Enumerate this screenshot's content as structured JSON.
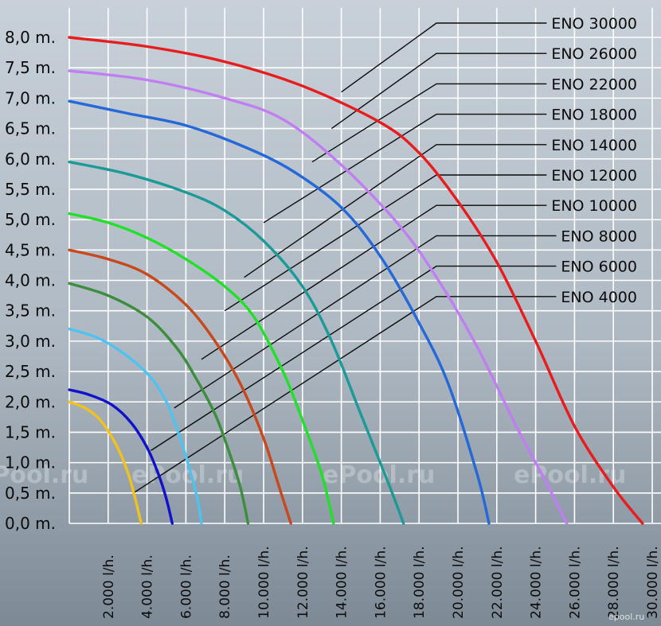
{
  "chart_data": {
    "type": "line",
    "title": "",
    "xlabel": "",
    "ylabel": "",
    "grid": true,
    "xlim": [
      0,
      30000
    ],
    "ylim": [
      0,
      8.5
    ],
    "y_ticks": [
      {
        "value": 0.0,
        "label": "0,0 m."
      },
      {
        "value": 0.5,
        "label": "0,5 m."
      },
      {
        "value": 1.0,
        "label": "1,0 m."
      },
      {
        "value": 1.5,
        "label": "1,5 m."
      },
      {
        "value": 2.0,
        "label": "2,0 m."
      },
      {
        "value": 2.5,
        "label": "2,5 m."
      },
      {
        "value": 3.0,
        "label": "3,0 m."
      },
      {
        "value": 3.5,
        "label": "3,5 m."
      },
      {
        "value": 4.0,
        "label": "4,0 m."
      },
      {
        "value": 4.5,
        "label": "4,5 m."
      },
      {
        "value": 5.0,
        "label": "5,0 m."
      },
      {
        "value": 5.5,
        "label": "5,5 m."
      },
      {
        "value": 6.0,
        "label": "6,0 m."
      },
      {
        "value": 6.5,
        "label": "6,5 m."
      },
      {
        "value": 7.0,
        "label": "7,0 m."
      },
      {
        "value": 7.5,
        "label": "7,5 m."
      },
      {
        "value": 8.0,
        "label": "8,0 m."
      }
    ],
    "x_ticks": [
      {
        "value": 2000,
        "label": "2.000 l/h."
      },
      {
        "value": 4000,
        "label": "4.000 l/h."
      },
      {
        "value": 6000,
        "label": "6.000 l/h."
      },
      {
        "value": 8000,
        "label": "8.000 l/h."
      },
      {
        "value": 10000,
        "label": "10.000 l/h."
      },
      {
        "value": 12000,
        "label": "12.000 l/h."
      },
      {
        "value": 14000,
        "label": "14.000 l/h."
      },
      {
        "value": 16000,
        "label": "16.000 l/h."
      },
      {
        "value": 18000,
        "label": "18.000 l/h."
      },
      {
        "value": 20000,
        "label": "20.000 l/h."
      },
      {
        "value": 22000,
        "label": "22.000 l/h."
      },
      {
        "value": 24000,
        "label": "24.000 l/h."
      },
      {
        "value": 26000,
        "label": "26.000 l/h."
      },
      {
        "value": 28000,
        "label": "28.000 l/h."
      },
      {
        "value": 30000,
        "label": "30.000 l/h."
      }
    ],
    "series": [
      {
        "name": "ENO 30000",
        "color": "#e81c1c",
        "x": [
          0,
          4000,
          8000,
          12000,
          16000,
          18000,
          20000,
          22000,
          24000,
          26000,
          28000,
          29500
        ],
        "y": [
          8.0,
          7.85,
          7.6,
          7.2,
          6.6,
          6.1,
          5.3,
          4.3,
          3.0,
          1.6,
          0.6,
          0.0
        ],
        "leader": [
          14000,
          7.1
        ]
      },
      {
        "name": "ENO 26000",
        "color": "#c07ef2",
        "x": [
          0,
          4000,
          8000,
          11000,
          14000,
          17000,
          19000,
          21000,
          23000,
          24500,
          25600
        ],
        "y": [
          7.45,
          7.3,
          7.0,
          6.65,
          5.9,
          4.9,
          4.0,
          2.9,
          1.6,
          0.7,
          0.0
        ],
        "leader": [
          13500,
          6.5
        ]
      },
      {
        "name": "ENO 22000",
        "color": "#2569d8",
        "x": [
          0,
          3000,
          6000,
          9000,
          11500,
          14000,
          16000,
          18000,
          19500,
          21000,
          21600
        ],
        "y": [
          6.95,
          6.75,
          6.55,
          6.2,
          5.8,
          5.2,
          4.4,
          3.3,
          2.3,
          0.8,
          0.0
        ],
        "leader": [
          12500,
          5.95
        ]
      },
      {
        "name": "ENO 18000",
        "color": "#1c9a98",
        "x": [
          0,
          3000,
          6000,
          8000,
          10000,
          12000,
          13500,
          15000,
          16500,
          17200
        ],
        "y": [
          5.95,
          5.75,
          5.45,
          5.15,
          4.65,
          3.9,
          3.0,
          1.8,
          0.6,
          0.0
        ],
        "leader": [
          10000,
          4.95
        ]
      },
      {
        "name": "ENO 14000",
        "color": "#22e02a",
        "x": [
          0,
          2000,
          4000,
          6000,
          8000,
          9500,
          11000,
          12000,
          13000,
          13600
        ],
        "y": [
          5.1,
          4.95,
          4.7,
          4.35,
          3.9,
          3.4,
          2.5,
          1.7,
          0.8,
          0.0
        ],
        "leader": [
          9000,
          4.05
        ]
      },
      {
        "name": "ENO 12000",
        "color": "#c8481c",
        "x": [
          0,
          2000,
          4000,
          6000,
          7500,
          8800,
          10000,
          10800,
          11400
        ],
        "y": [
          4.5,
          4.35,
          4.1,
          3.6,
          3.0,
          2.3,
          1.4,
          0.6,
          0.0
        ],
        "leader": [
          8000,
          3.5
        ]
      },
      {
        "name": "ENO 10000",
        "color": "#3c8e3c",
        "x": [
          0,
          2000,
          4000,
          5500,
          6500,
          7500,
          8200,
          8800,
          9200
        ],
        "y": [
          3.95,
          3.75,
          3.4,
          2.9,
          2.4,
          1.8,
          1.2,
          0.6,
          0.0
        ],
        "leader": [
          6800,
          2.7
        ]
      },
      {
        "name": "ENO 8000",
        "color": "#4ec3ef",
        "x": [
          0,
          1500,
          3000,
          4200,
          5000,
          5600,
          6100,
          6600,
          6800
        ],
        "y": [
          3.2,
          3.05,
          2.75,
          2.4,
          2.0,
          1.5,
          1.0,
          0.4,
          0.0
        ],
        "leader": [
          5400,
          1.9
        ]
      },
      {
        "name": "ENO 6000",
        "color": "#1111cc",
        "x": [
          0,
          1000,
          2200,
          3200,
          4000,
          4600,
          5000,
          5300
        ],
        "y": [
          2.2,
          2.12,
          1.95,
          1.65,
          1.25,
          0.8,
          0.4,
          0.0
        ],
        "leader": [
          4200,
          1.2
        ]
      },
      {
        "name": "ENO 4000",
        "color": "#f2c21c",
        "x": [
          0,
          800,
          1600,
          2400,
          3000,
          3400,
          3700
        ],
        "y": [
          2.0,
          1.9,
          1.7,
          1.3,
          0.85,
          0.4,
          0.0
        ],
        "leader": [
          3300,
          0.5
        ]
      }
    ],
    "legend_placement": "top-right"
  },
  "watermark": {
    "text": "ePool.ru"
  },
  "credit": {
    "text": "epool.ru"
  }
}
